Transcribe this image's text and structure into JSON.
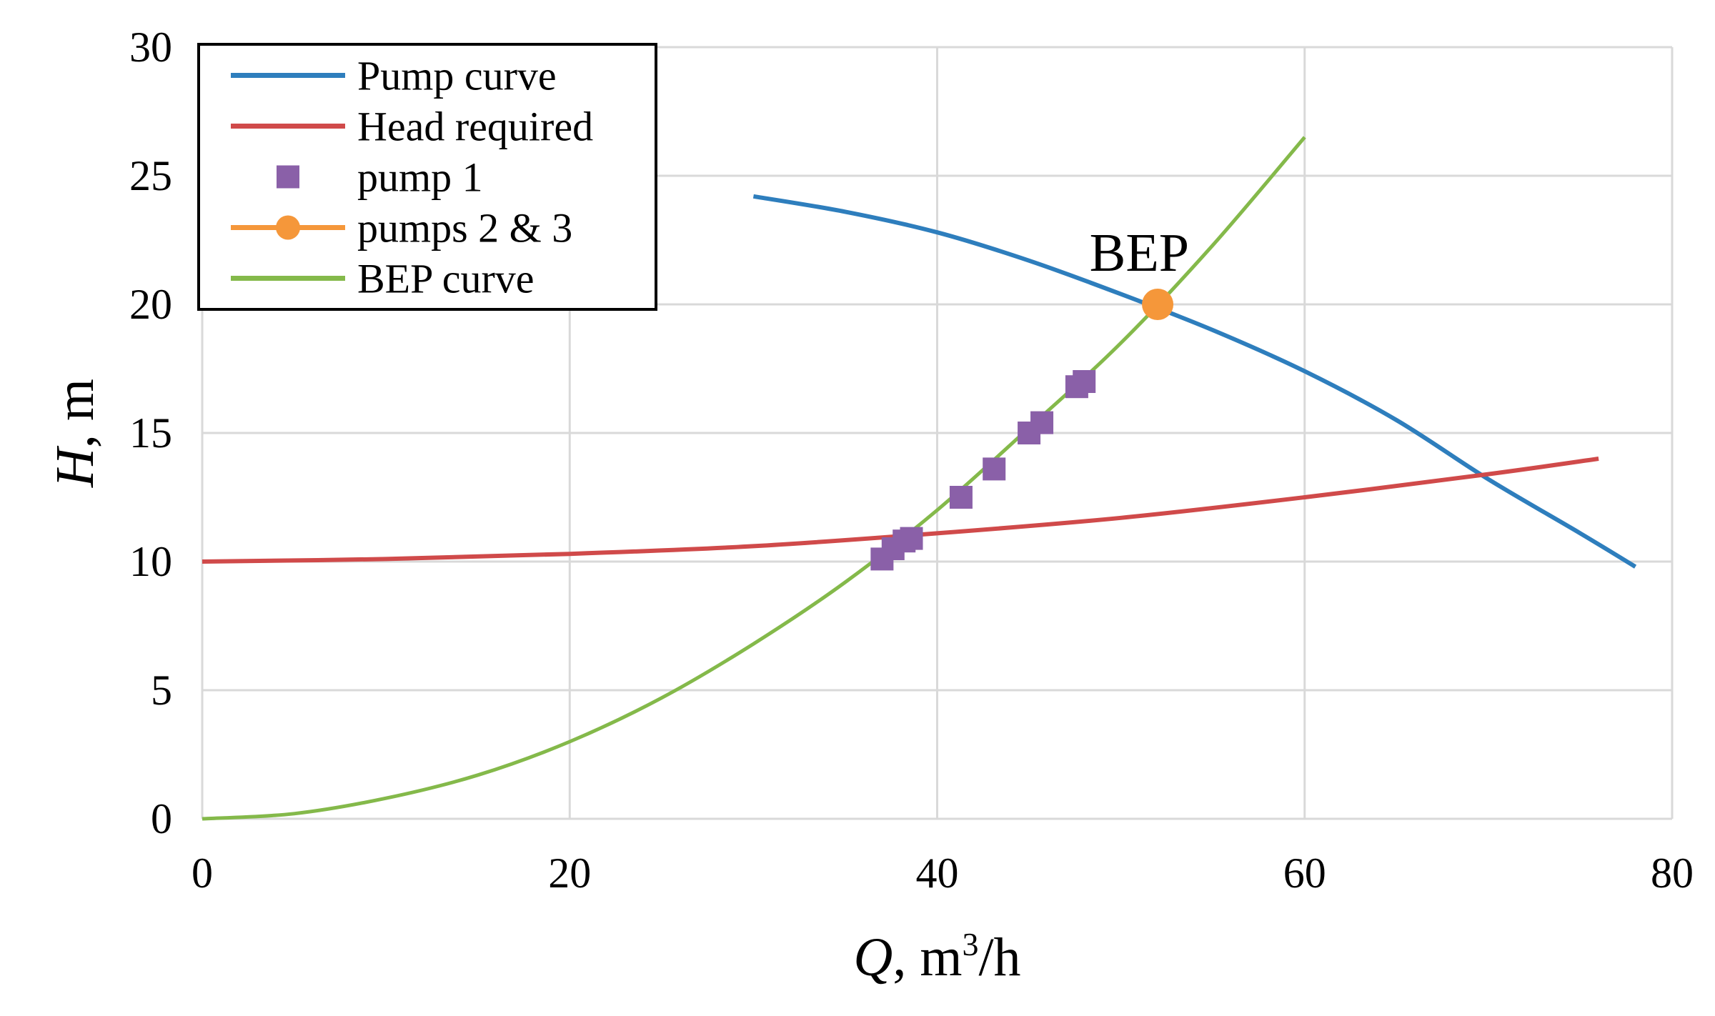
{
  "chart_data": {
    "type": "line",
    "title": "",
    "xlabel": {
      "italic": "Q",
      "rest": ", m",
      "sup": "3",
      "after": "/h"
    },
    "ylabel": {
      "italic": "H",
      "rest": ", m"
    },
    "xlim": [
      0,
      80
    ],
    "ylim": [
      0,
      30
    ],
    "xticks": [
      0,
      20,
      40,
      60,
      80
    ],
    "yticks": [
      0,
      5,
      10,
      15,
      20,
      25,
      30
    ],
    "grid": true,
    "legend": "top-left",
    "series": [
      {
        "name": "Pump curve",
        "kind": "line",
        "color": "#2e7ebd",
        "x": [
          30,
          35,
          40,
          45,
          50,
          55,
          60,
          65,
          70,
          75,
          78
        ],
        "y": [
          24.2,
          23.6,
          22.8,
          21.7,
          20.4,
          19.0,
          17.4,
          15.5,
          13.2,
          11.1,
          9.8
        ]
      },
      {
        "name": "Head required",
        "kind": "line",
        "color": "#d04a4a",
        "x": [
          0,
          10,
          20,
          30,
          40,
          50,
          60,
          70,
          76
        ],
        "y": [
          10.0,
          10.1,
          10.3,
          10.6,
          11.1,
          11.7,
          12.5,
          13.4,
          14.0
        ]
      },
      {
        "name": "pump 1",
        "kind": "marker-square",
        "color": "#8a60a8",
        "x": [
          37.0,
          37.6,
          38.2,
          38.6,
          41.3,
          43.1,
          45.0,
          45.7,
          47.6,
          48.0
        ],
        "y": [
          10.1,
          10.5,
          10.8,
          10.9,
          12.5,
          13.6,
          15.0,
          15.4,
          16.8,
          17.0
        ]
      },
      {
        "name": "pumps 2 & 3",
        "kind": "marker-circle",
        "color": "#f5973a",
        "x": [
          52.0
        ],
        "y": [
          20.0
        ]
      },
      {
        "name": "BEP curve",
        "kind": "line",
        "color": "#84b94a",
        "x": [
          0,
          5,
          10,
          15,
          20,
          25,
          30,
          35,
          40,
          45,
          50,
          55,
          60
        ],
        "y": [
          0,
          0.2,
          0.8,
          1.7,
          3.0,
          4.7,
          6.8,
          9.2,
          12.0,
          15.2,
          18.5,
          22.3,
          26.5
        ]
      }
    ],
    "annotations": [
      {
        "text": "BEP",
        "x": 51,
        "y": 21.3
      }
    ]
  }
}
